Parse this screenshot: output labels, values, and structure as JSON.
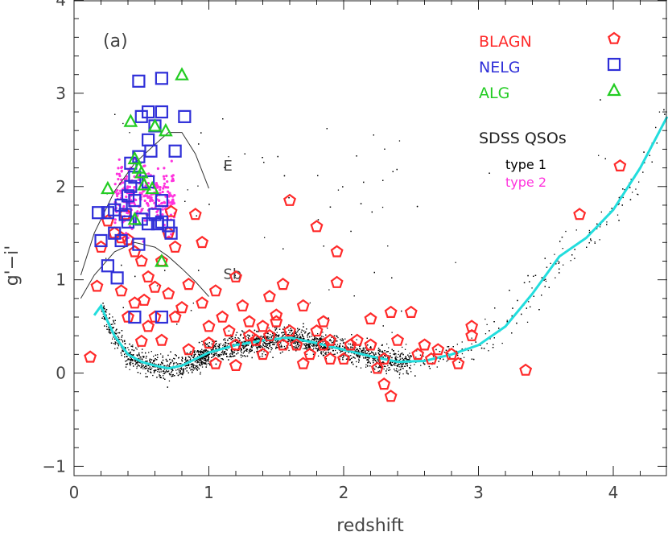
{
  "chart_data": {
    "type": "scatter",
    "title": "",
    "panel_label": "(a)",
    "xlabel": "redshift",
    "ylabel": "g'−i'",
    "xlim": [
      0,
      4.4
    ],
    "ylim": [
      -1.1,
      4
    ],
    "xticks": [
      0,
      1,
      2,
      3,
      4
    ],
    "yticks": [
      -1,
      0,
      1,
      2,
      3,
      4
    ],
    "xtick_labels": [
      "0",
      "1",
      "2",
      "3",
      "4"
    ],
    "ytick_labels": [
      "−1",
      "0",
      "1",
      "2",
      "3",
      "4"
    ],
    "grid": false,
    "legend": {
      "placement": "top-right",
      "entries": [
        {
          "name": "BLAGN",
          "color": "#ff2a2a",
          "marker": "pentagon"
        },
        {
          "name": "NELG",
          "color": "#2f2fd8",
          "marker": "square"
        },
        {
          "name": "ALG",
          "color": "#22cc22",
          "marker": "triangle"
        }
      ],
      "qso_title": "SDSS QSOs",
      "qso_entries": [
        {
          "name": "type 1",
          "color": "#000000"
        },
        {
          "name": "type 2",
          "color": "#ff33dd"
        }
      ]
    },
    "colors": {
      "blagn": "#ff2a2a",
      "nelg": "#2f2fd8",
      "alg": "#22cc22",
      "qso1": "#000000",
      "qso2": "#ff33dd",
      "mean_track": "#22dddd",
      "templates": "#333333"
    },
    "templates": [
      {
        "name": "E",
        "x": [
          0.05,
          0.15,
          0.3,
          0.45,
          0.6,
          0.7,
          0.8,
          0.9,
          1.0
        ],
        "y": [
          1.05,
          1.5,
          1.95,
          2.25,
          2.45,
          2.58,
          2.58,
          2.35,
          1.98
        ]
      },
      {
        "name": "Sb",
        "x": [
          0.05,
          0.15,
          0.3,
          0.45,
          0.6,
          0.7,
          0.8,
          0.9,
          1.0
        ],
        "y": [
          0.8,
          1.05,
          1.3,
          1.4,
          1.35,
          1.25,
          1.12,
          0.98,
          0.82
        ]
      }
    ],
    "mean_track": {
      "x": [
        0.15,
        0.2,
        0.25,
        0.3,
        0.35,
        0.4,
        0.5,
        0.6,
        0.7,
        0.8,
        0.9,
        1.0,
        1.2,
        1.4,
        1.6,
        1.8,
        2.0,
        2.2,
        2.4,
        2.6,
        2.8,
        3.0,
        3.2,
        3.4,
        3.6,
        3.8,
        4.0,
        4.2,
        4.4
      ],
      "y": [
        0.62,
        0.72,
        0.55,
        0.4,
        0.3,
        0.2,
        0.12,
        0.08,
        0.05,
        0.08,
        0.15,
        0.22,
        0.3,
        0.35,
        0.38,
        0.32,
        0.25,
        0.18,
        0.12,
        0.13,
        0.2,
        0.3,
        0.5,
        0.85,
        1.25,
        1.45,
        1.75,
        2.2,
        2.75
      ]
    },
    "series": [
      {
        "name": "BLAGN",
        "points": [
          [
            0.12,
            0.17
          ],
          [
            0.17,
            0.93
          ],
          [
            0.2,
            1.35
          ],
          [
            0.25,
            1.63
          ],
          [
            0.3,
            1.5
          ],
          [
            0.35,
            1.45
          ],
          [
            0.38,
            1.7
          ],
          [
            0.4,
            1.43
          ],
          [
            0.45,
            1.3
          ],
          [
            0.5,
            1.2
          ],
          [
            0.55,
            1.03
          ],
          [
            0.35,
            0.88
          ],
          [
            0.4,
            0.6
          ],
          [
            0.45,
            0.75
          ],
          [
            0.5,
            0.34
          ],
          [
            0.52,
            0.78
          ],
          [
            0.55,
            0.5
          ],
          [
            0.6,
            0.92
          ],
          [
            0.65,
            1.2
          ],
          [
            0.7,
            1.5
          ],
          [
            0.72,
            1.73
          ],
          [
            0.75,
            1.35
          ],
          [
            0.7,
            0.85
          ],
          [
            0.75,
            0.6
          ],
          [
            0.8,
            0.7
          ],
          [
            0.85,
            0.95
          ],
          [
            0.9,
            1.7
          ],
          [
            0.95,
            1.4
          ],
          [
            0.95,
            0.75
          ],
          [
            1.0,
            0.5
          ],
          [
            1.0,
            0.32
          ],
          [
            1.05,
            0.88
          ],
          [
            1.1,
            0.6
          ],
          [
            1.15,
            0.45
          ],
          [
            1.2,
            0.3
          ],
          [
            1.2,
            1.03
          ],
          [
            1.25,
            0.72
          ],
          [
            1.3,
            0.55
          ],
          [
            1.35,
            0.35
          ],
          [
            1.4,
            0.5
          ],
          [
            1.45,
            0.82
          ],
          [
            1.5,
            0.62
          ],
          [
            1.55,
            0.95
          ],
          [
            1.6,
            1.85
          ],
          [
            1.6,
            0.45
          ],
          [
            1.65,
            0.3
          ],
          [
            1.7,
            0.72
          ],
          [
            1.75,
            0.2
          ],
          [
            1.8,
            1.57
          ],
          [
            1.85,
            0.55
          ],
          [
            1.9,
            0.35
          ],
          [
            1.95,
            1.3
          ],
          [
            1.95,
            0.97
          ],
          [
            2.0,
            0.15
          ],
          [
            2.05,
            0.3
          ],
          [
            2.1,
            0.35
          ],
          [
            2.2,
            0.58
          ],
          [
            2.3,
            0.15
          ],
          [
            2.35,
            0.65
          ],
          [
            2.4,
            0.35
          ],
          [
            2.25,
            0.05
          ],
          [
            2.3,
            -0.12
          ],
          [
            2.35,
            -0.25
          ],
          [
            2.5,
            0.65
          ],
          [
            2.55,
            0.2
          ],
          [
            2.6,
            0.3
          ],
          [
            2.65,
            0.15
          ],
          [
            2.7,
            0.25
          ],
          [
            2.8,
            0.2
          ],
          [
            2.85,
            0.1
          ],
          [
            2.95,
            0.5
          ],
          [
            2.95,
            0.4
          ],
          [
            3.35,
            0.03
          ],
          [
            3.75,
            1.7
          ],
          [
            4.05,
            2.22
          ],
          [
            0.6,
            0.6
          ],
          [
            0.65,
            0.35
          ],
          [
            0.85,
            0.25
          ],
          [
            1.05,
            0.1
          ],
          [
            1.2,
            0.08
          ],
          [
            1.4,
            0.2
          ],
          [
            1.45,
            0.4
          ],
          [
            1.5,
            0.55
          ],
          [
            1.55,
            0.3
          ],
          [
            1.7,
            0.1
          ],
          [
            1.8,
            0.45
          ],
          [
            1.85,
            0.3
          ],
          [
            1.9,
            0.15
          ],
          [
            2.2,
            0.3
          ],
          [
            1.3,
            0.4
          ]
        ]
      },
      {
        "name": "NELG",
        "points": [
          [
            0.48,
            3.13
          ],
          [
            0.65,
            3.16
          ],
          [
            0.5,
            2.75
          ],
          [
            0.55,
            2.8
          ],
          [
            0.65,
            2.8
          ],
          [
            0.82,
            2.75
          ],
          [
            0.6,
            2.65
          ],
          [
            0.55,
            2.5
          ],
          [
            0.57,
            2.38
          ],
          [
            0.75,
            2.38
          ],
          [
            0.48,
            2.32
          ],
          [
            0.42,
            2.25
          ],
          [
            0.45,
            2.1
          ],
          [
            0.55,
            2.05
          ],
          [
            0.4,
            1.9
          ],
          [
            0.45,
            1.85
          ],
          [
            0.65,
            1.85
          ],
          [
            0.18,
            1.72
          ],
          [
            0.25,
            1.72
          ],
          [
            0.3,
            1.75
          ],
          [
            0.35,
            1.8
          ],
          [
            0.4,
            1.62
          ],
          [
            0.5,
            1.65
          ],
          [
            0.55,
            1.6
          ],
          [
            0.62,
            1.6
          ],
          [
            0.72,
            1.5
          ],
          [
            0.2,
            1.42
          ],
          [
            0.3,
            1.5
          ],
          [
            0.35,
            1.42
          ],
          [
            0.48,
            1.38
          ],
          [
            0.65,
            1.62
          ],
          [
            0.25,
            1.15
          ],
          [
            0.32,
            1.02
          ],
          [
            0.45,
            0.6
          ],
          [
            0.65,
            0.6
          ],
          [
            0.6,
            1.7
          ],
          [
            0.42,
            2.0
          ],
          [
            0.7,
            1.58
          ],
          [
            0.38,
            1.7
          ]
        ]
      },
      {
        "name": "ALG",
        "points": [
          [
            0.8,
            3.2
          ],
          [
            0.42,
            2.7
          ],
          [
            0.6,
            2.65
          ],
          [
            0.68,
            2.6
          ],
          [
            0.45,
            2.3
          ],
          [
            0.48,
            2.2
          ],
          [
            0.5,
            2.15
          ],
          [
            0.52,
            2.02
          ],
          [
            0.58,
            1.98
          ],
          [
            0.25,
            1.98
          ],
          [
            0.45,
            1.65
          ],
          [
            0.65,
            1.2
          ]
        ]
      }
    ]
  }
}
